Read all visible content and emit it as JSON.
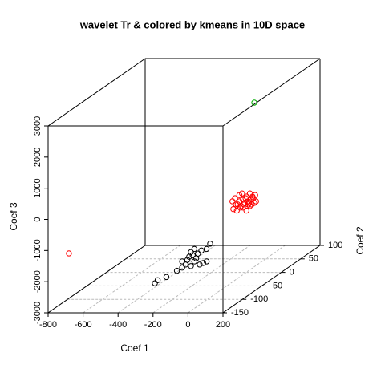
{
  "chart_data": {
    "type": "scatter3d",
    "title": "wavelet Tr & colored by kmeans in 10D space",
    "xlabel": "Coef 1",
    "ylabel": "Coef 2",
    "zlabel": "Coef 3",
    "xlim": [
      -800,
      200
    ],
    "xticks": [
      -800,
      -600,
      -400,
      -200,
      0,
      200
    ],
    "ylim": [
      -150,
      100
    ],
    "yticks": [
      -150,
      -100,
      -50,
      0,
      50,
      100
    ],
    "zlim": [
      -3000,
      3000
    ],
    "zticks": [
      -3000,
      -2000,
      -1000,
      0,
      1000,
      2000,
      3000
    ],
    "grid": true,
    "series": [
      {
        "color": "#000000",
        "x": [
          -356,
          -340,
          -290,
          -230,
          -200,
          -180,
          -150,
          -130,
          -170,
          -160,
          -140,
          -120,
          -100,
          -110,
          -150,
          -90,
          -60,
          -40,
          -80,
          -200,
          -130,
          -60
        ],
        "y": [
          -75,
          -75,
          -75,
          -75,
          -75,
          -75,
          -75,
          -75,
          -75,
          -75,
          -75,
          -75,
          -75,
          -75,
          -75,
          -75,
          -75,
          -75,
          -75,
          -75,
          -75,
          -75
        ],
        "z": [
          -2700,
          -2600,
          -2500,
          -2300,
          -2200,
          -2100,
          -2150,
          -2000,
          -1950,
          -1850,
          -1800,
          -1900,
          -2100,
          -1750,
          -1700,
          -1650,
          -1600,
          -1430,
          -2050,
          -2000,
          -1600,
          -2000
        ]
      },
      {
        "color": "#ff0000",
        "x": [
          -681,
          -190,
          -175,
          -160,
          -150,
          -140,
          -130,
          -120,
          -110,
          -100,
          -90,
          -80,
          -70,
          -60,
          -55,
          -185,
          -165,
          -145,
          -125,
          -105,
          -95,
          -85,
          -75,
          -65,
          -170,
          -150,
          -130,
          -110,
          -90,
          -115,
          -135,
          -100
        ],
        "y": [
          -150,
          50,
          50,
          50,
          50,
          50,
          50,
          50,
          50,
          50,
          50,
          50,
          50,
          50,
          50,
          50,
          50,
          50,
          50,
          50,
          50,
          50,
          50,
          50,
          50,
          50,
          50,
          50,
          50,
          50,
          50,
          50
        ],
        "z": [
          -1094,
          -1150,
          -1050,
          -1250,
          -950,
          -1300,
          -1100,
          -1200,
          -1000,
          -1150,
          -900,
          -1250,
          -1050,
          -950,
          -1150,
          -1400,
          -1450,
          -1350,
          -1250,
          -1300,
          -1200,
          -1100,
          -1000,
          -1200,
          -1250,
          -1150,
          -1350,
          -1450,
          -1300,
          -1050,
          -900,
          -1250
        ]
      },
      {
        "color": "#00aa00",
        "x": [
          -176
        ],
        "y": [
          100
        ],
        "z": [
          1584
        ]
      }
    ]
  }
}
